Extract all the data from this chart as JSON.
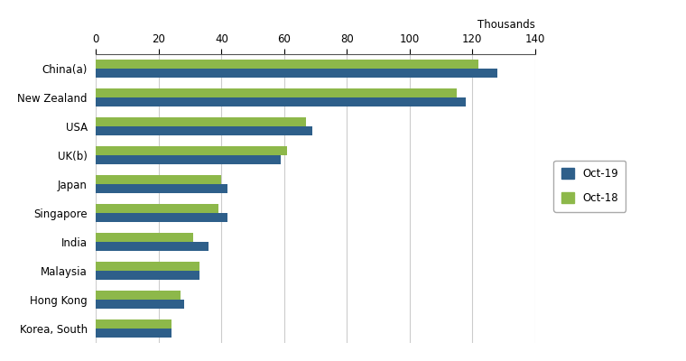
{
  "categories": [
    "China(a)",
    "New Zealand",
    "USA",
    "UK(b)",
    "Japan",
    "Singapore",
    "India",
    "Malaysia",
    "Hong Kong",
    "Korea, South"
  ],
  "oct19_values": [
    128,
    118,
    69,
    59,
    42,
    42,
    36,
    33,
    28,
    24
  ],
  "oct18_values": [
    122,
    115,
    67,
    61,
    40,
    39,
    31,
    33,
    27,
    24
  ],
  "oct19_color": "#2E5F8A",
  "oct18_color": "#8DB84A",
  "xlim": [
    0,
    140
  ],
  "xticks": [
    0,
    20,
    40,
    60,
    80,
    100,
    120,
    140
  ],
  "xlabel_thousands": "Thousands",
  "legend_oct19": "Oct-19",
  "legend_oct18": "Oct-18",
  "bar_height": 0.32,
  "background_color": "#ffffff",
  "grid_color": "#cccccc"
}
